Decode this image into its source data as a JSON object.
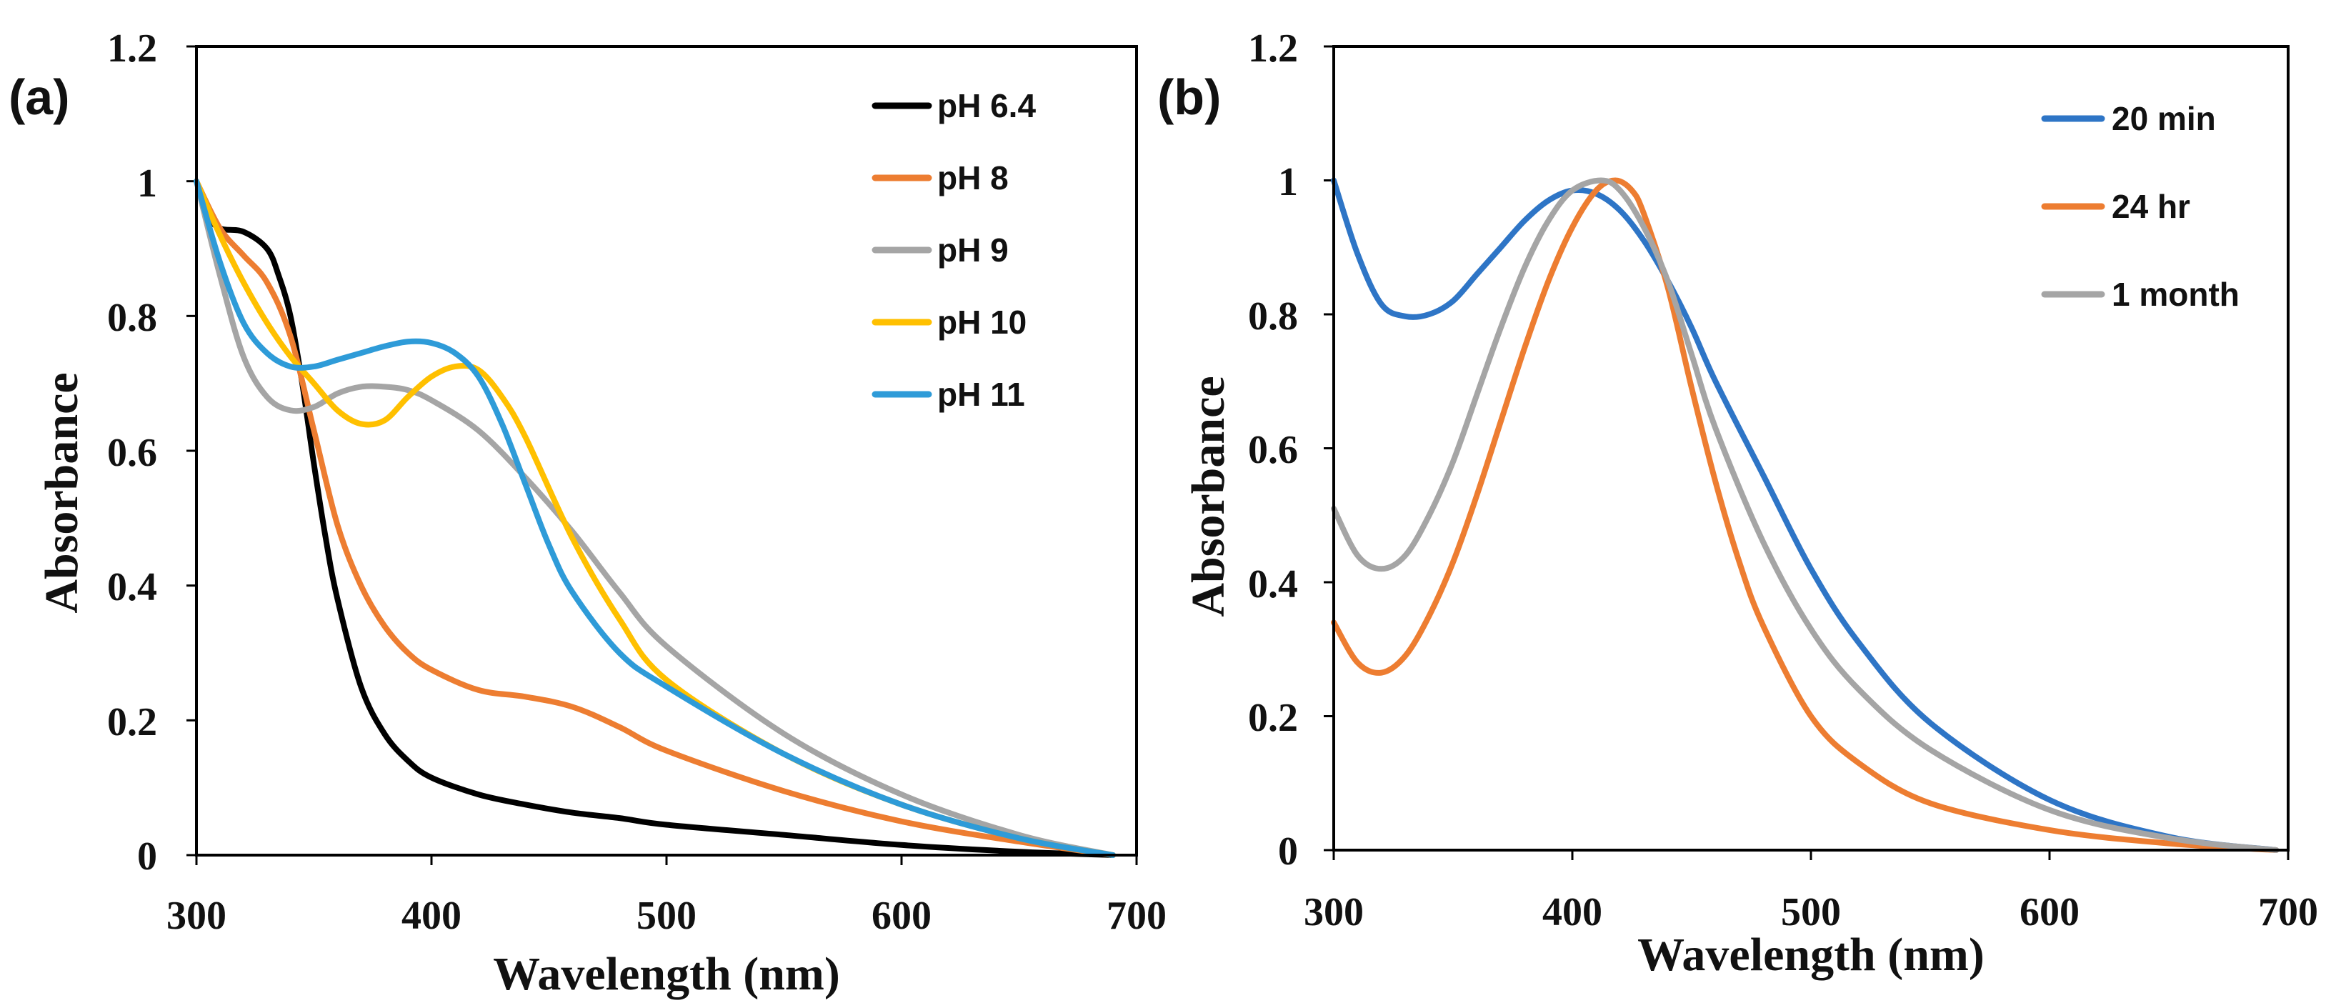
{
  "chart_data": [
    {
      "type": "line",
      "panel_label": "(a)",
      "title": "",
      "xlabel": "Wavelength (nm)",
      "ylabel": "Absorbance",
      "xlim": [
        300,
        700
      ],
      "ylim": [
        0,
        1.2
      ],
      "xticks": [
        "300",
        "400",
        "500",
        "600",
        "700"
      ],
      "yticks": [
        "0",
        "0.2",
        "0.4",
        "0.6",
        "0.8",
        "1",
        "1.2"
      ],
      "grid": false,
      "legend_position": "top-right",
      "series": [
        {
          "name": "pH 6.4",
          "color": "#000000",
          "x": [
            300,
            305,
            310,
            320,
            330,
            335,
            340,
            345,
            350,
            355,
            360,
            370,
            380,
            390,
            400,
            420,
            440,
            460,
            480,
            500,
            550,
            600,
            650,
            690
          ],
          "y": [
            1.0,
            0.95,
            0.93,
            0.925,
            0.9,
            0.86,
            0.8,
            0.7,
            0.58,
            0.47,
            0.38,
            0.25,
            0.18,
            0.14,
            0.115,
            0.09,
            0.075,
            0.063,
            0.055,
            0.045,
            0.03,
            0.015,
            0.005,
            0.0
          ]
        },
        {
          "name": "pH 8",
          "color": "#ED7D31",
          "x": [
            300,
            310,
            320,
            330,
            340,
            350,
            360,
            370,
            380,
            390,
            400,
            420,
            440,
            460,
            480,
            500,
            550,
            600,
            650,
            690
          ],
          "y": [
            1.0,
            0.93,
            0.89,
            0.85,
            0.77,
            0.63,
            0.49,
            0.4,
            0.34,
            0.3,
            0.275,
            0.245,
            0.235,
            0.22,
            0.19,
            0.155,
            0.095,
            0.05,
            0.02,
            0.0
          ]
        },
        {
          "name": "pH 9",
          "color": "#A5A5A5",
          "x": [
            300,
            310,
            320,
            330,
            340,
            350,
            360,
            370,
            380,
            390,
            400,
            420,
            440,
            460,
            480,
            500,
            550,
            600,
            650,
            690
          ],
          "y": [
            1.0,
            0.86,
            0.74,
            0.68,
            0.66,
            0.665,
            0.685,
            0.695,
            0.695,
            0.69,
            0.675,
            0.63,
            0.56,
            0.48,
            0.39,
            0.31,
            0.18,
            0.09,
            0.03,
            0.0
          ]
        },
        {
          "name": "pH 10",
          "color": "#FFC000",
          "x": [
            300,
            310,
            320,
            330,
            340,
            350,
            360,
            370,
            380,
            390,
            400,
            410,
            420,
            430,
            440,
            460,
            480,
            500,
            550,
            600,
            650,
            690
          ],
          "y": [
            1.0,
            0.92,
            0.85,
            0.79,
            0.74,
            0.7,
            0.66,
            0.64,
            0.645,
            0.68,
            0.71,
            0.725,
            0.72,
            0.68,
            0.62,
            0.47,
            0.35,
            0.26,
            0.15,
            0.075,
            0.025,
            0.0
          ]
        },
        {
          "name": "pH 11",
          "color": "#2E9BD8",
          "x": [
            300,
            310,
            320,
            330,
            340,
            350,
            360,
            370,
            380,
            390,
            400,
            410,
            420,
            430,
            440,
            450,
            460,
            480,
            500,
            550,
            600,
            650,
            690
          ],
          "y": [
            1.0,
            0.88,
            0.79,
            0.745,
            0.725,
            0.725,
            0.735,
            0.745,
            0.755,
            0.762,
            0.76,
            0.745,
            0.71,
            0.64,
            0.55,
            0.46,
            0.39,
            0.3,
            0.25,
            0.15,
            0.075,
            0.025,
            0.0
          ]
        }
      ]
    },
    {
      "type": "line",
      "panel_label": "(b)",
      "title": "",
      "xlabel": "Wavelength (nm)",
      "ylabel": "Absorbance",
      "xlim": [
        300,
        700
      ],
      "ylim": [
        0,
        1.2
      ],
      "xticks": [
        "300",
        "400",
        "500",
        "600",
        "700"
      ],
      "yticks": [
        "0",
        "0.2",
        "0.4",
        "0.6",
        "0.8",
        "1",
        "1.2"
      ],
      "grid": false,
      "legend_position": "top-right",
      "series": [
        {
          "name": "20 min",
          "color": "#2E75C6",
          "x": [
            300,
            310,
            320,
            330,
            340,
            350,
            360,
            370,
            380,
            390,
            400,
            410,
            420,
            430,
            440,
            450,
            460,
            480,
            500,
            520,
            550,
            600,
            650,
            695
          ],
          "y": [
            1.0,
            0.89,
            0.815,
            0.797,
            0.8,
            0.82,
            0.86,
            0.9,
            0.94,
            0.97,
            0.985,
            0.98,
            0.955,
            0.91,
            0.85,
            0.78,
            0.7,
            0.56,
            0.42,
            0.31,
            0.19,
            0.075,
            0.02,
            0.0
          ]
        },
        {
          "name": "24 hr",
          "color": "#ED7D31",
          "x": [
            300,
            310,
            320,
            330,
            340,
            350,
            360,
            370,
            380,
            390,
            400,
            410,
            418,
            425,
            430,
            440,
            450,
            460,
            470,
            480,
            500,
            520,
            550,
            600,
            650,
            695
          ],
          "y": [
            0.34,
            0.28,
            0.265,
            0.29,
            0.35,
            0.43,
            0.53,
            0.64,
            0.75,
            0.85,
            0.93,
            0.985,
            1.0,
            0.985,
            0.95,
            0.84,
            0.69,
            0.55,
            0.43,
            0.335,
            0.2,
            0.13,
            0.07,
            0.03,
            0.01,
            0.0
          ]
        },
        {
          "name": "1 month",
          "color": "#A5A5A5",
          "x": [
            300,
            310,
            320,
            330,
            340,
            350,
            360,
            370,
            380,
            390,
            400,
            412,
            420,
            430,
            440,
            450,
            460,
            480,
            500,
            520,
            550,
            600,
            650,
            695
          ],
          "y": [
            0.51,
            0.44,
            0.42,
            0.44,
            0.5,
            0.58,
            0.68,
            0.78,
            0.87,
            0.94,
            0.985,
            1.0,
            0.985,
            0.93,
            0.85,
            0.74,
            0.63,
            0.46,
            0.33,
            0.24,
            0.15,
            0.06,
            0.018,
            0.0
          ]
        }
      ]
    }
  ]
}
